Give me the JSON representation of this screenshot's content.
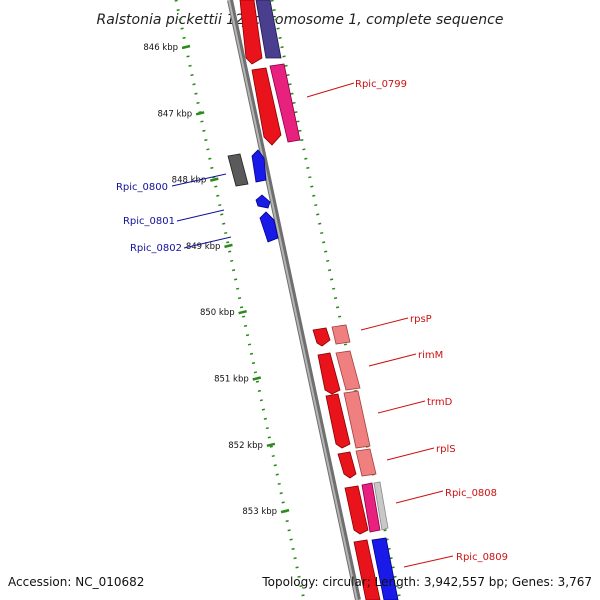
{
  "title": "Ralstonia pickettii 12J chromosome 1, complete sequence",
  "accession": "Accession: NC_010682",
  "summary": "Topology: circular; Length: 3,942,557 bp; Genes: 3,767",
  "ruler": {
    "ticks": [
      {
        "label": "846 kbp",
        "kbp": 846
      },
      {
        "label": "847 kbp",
        "kbp": 847
      },
      {
        "label": "848 kbp",
        "kbp": 848
      },
      {
        "label": "849 kbp",
        "kbp": 849
      },
      {
        "label": "850 kbp",
        "kbp": 850
      },
      {
        "label": "851 kbp",
        "kbp": 851
      },
      {
        "label": "852 kbp",
        "kbp": 852
      },
      {
        "label": "853 kbp",
        "kbp": 853
      }
    ]
  },
  "genes": {
    "right": [
      "Rpic_0799",
      "rpsP",
      "rimM",
      "trmD",
      "rplS",
      "Rpic_0808",
      "Rpic_0809"
    ],
    "left": [
      "Rpic_0800",
      "Rpic_0801",
      "Rpic_0802"
    ]
  },
  "colors": {
    "backbone": "#8a8a8a",
    "ruler": "#2a8a1a",
    "forward_gene": "#e8131b",
    "reverse_gene": "#1a1ae8",
    "cds_pink": "#e8207e",
    "cds_salmon": "#f08080",
    "cds_purple": "#4a3f8f",
    "cds_gray": "#5a5a5a",
    "label_red": "#cc1111",
    "label_blue": "#111199"
  }
}
